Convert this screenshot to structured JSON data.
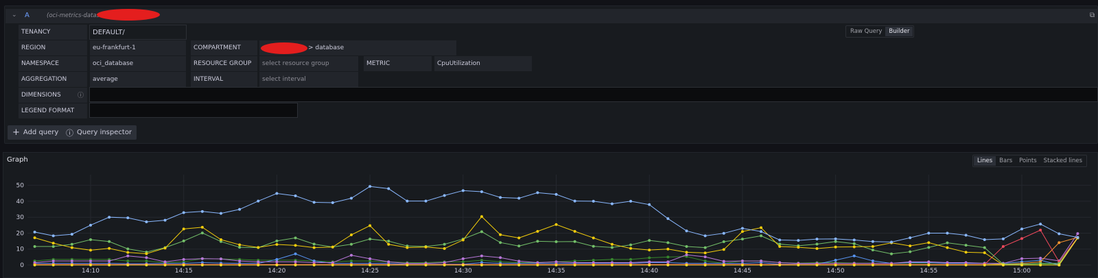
{
  "query": {
    "letter": "A",
    "datasource": "(oci-metrics-datasource",
    "mode_tabs": [
      {
        "label": "Raw Query",
        "active": false
      },
      {
        "label": "Builder",
        "active": true
      }
    ],
    "fields": {
      "tenancy": {
        "label": "TENANCY",
        "value": "DEFAULT/"
      },
      "region": {
        "label": "REGION",
        "value": "eu-frankfurt-1"
      },
      "compartment": {
        "label": "COMPARTMENT",
        "value": "> database"
      },
      "namespace": {
        "label": "NAMESPACE",
        "value": "oci_database"
      },
      "resource_group": {
        "label": "RESOURCE GROUP",
        "placeholder": "select resource group"
      },
      "metric": {
        "label": "METRIC",
        "value": "CpuUtilization"
      },
      "aggregation": {
        "label": "AGGREGATION",
        "value": "average"
      },
      "interval": {
        "label": "INTERVAL",
        "placeholder": "select interval"
      },
      "dimensions": {
        "label": "DIMENSIONS",
        "value": ""
      },
      "legend_format": {
        "label": "LEGEND FORMAT",
        "value": ""
      }
    },
    "add_query": "Add query",
    "query_inspector": "Query inspector"
  },
  "graph": {
    "title": "Graph",
    "view_tabs": [
      {
        "label": "Lines",
        "active": true
      },
      {
        "label": "Bars",
        "active": false
      },
      {
        "label": "Points",
        "active": false
      },
      {
        "label": "Stacked lines",
        "active": false
      }
    ]
  },
  "chart_data": {
    "type": "line",
    "ylim": [
      0,
      55
    ],
    "yticks": [
      "0",
      "10",
      "20",
      "30",
      "40",
      "50"
    ],
    "xticks": [
      "14:10",
      "14:15",
      "14:20",
      "14:25",
      "14:30",
      "14:35",
      "14:40",
      "14:45",
      "14:50",
      "14:55",
      "15:00"
    ],
    "x_start": "14:07",
    "x_end": "15:03",
    "x_step_minutes": 1,
    "grid": true,
    "series": [
      {
        "color": "#37872D",
        "values": [
          2.5,
          3.5,
          3.5,
          3.5,
          3.5,
          2.5,
          2.5,
          1.5,
          2,
          4,
          3.8,
          3.5,
          3,
          3,
          3,
          2.5,
          2,
          2.5,
          2.5,
          2,
          1.5,
          1.5,
          2,
          2,
          3,
          2,
          1.5,
          1.5,
          2,
          2.5,
          3,
          3.5,
          3.5,
          4.5,
          5,
          5.3,
          2.5,
          1,
          2.5,
          2.5,
          1.5,
          1.2,
          1.5,
          1.5,
          1.2,
          1.2,
          1,
          1.2,
          1.2,
          1.2,
          1.2,
          1.2,
          0.5,
          0.5,
          0.5,
          0.5,
          17
        ]
      },
      {
        "color": "#5794F2",
        "values": [
          1,
          1,
          1,
          1,
          1,
          0.8,
          0.8,
          1,
          1,
          1.5,
          1.2,
          1,
          1,
          3.5,
          7,
          2.5,
          1,
          1,
          1,
          1,
          0.5,
          0.5,
          0.5,
          0.5,
          1.5,
          1,
          1,
          1,
          1,
          1,
          1,
          1,
          1,
          1.5,
          1.5,
          1,
          1,
          1,
          1,
          1.5,
          0.5,
          0.5,
          0.5,
          3,
          5.7,
          2.6,
          1,
          1.5,
          1.5,
          1,
          1,
          1,
          1,
          2,
          3,
          0,
          17
        ]
      },
      {
        "color": "#B877D9",
        "values": [
          1.5,
          2.5,
          2.5,
          2.5,
          2.5,
          5.7,
          4.6,
          2,
          3.5,
          4,
          3.8,
          2.5,
          2,
          2,
          2,
          1.5,
          1.5,
          6.1,
          3.9,
          2,
          1,
          1,
          1.5,
          3.9,
          5.7,
          4.6,
          2.4,
          1.5,
          2,
          1.5,
          1.5,
          1.5,
          1.5,
          2,
          2,
          6.4,
          5.1,
          2.3,
          2.5,
          2.5,
          1.5,
          1,
          1,
          1,
          1,
          1,
          1,
          2,
          2,
          1.5,
          1.5,
          1,
          1,
          4,
          4.3,
          2.6,
          19.7
        ]
      },
      {
        "color": "#FF9830",
        "values": [
          0.2,
          0.2,
          0.2,
          0.2,
          0.2,
          0.2,
          0.2,
          0.2,
          0.2,
          0.2,
          0.2,
          0.2,
          0.2,
          0.2,
          0.2,
          0.2,
          0.2,
          0.2,
          0.2,
          0.2,
          0.2,
          0.2,
          0.2,
          0.2,
          0.2,
          0.2,
          0.2,
          0.2,
          0.2,
          0.2,
          0.2,
          0.2,
          0.2,
          0.2,
          0.2,
          0.2,
          0.2,
          0.2,
          0.2,
          0.2,
          0.2,
          0.2,
          0.2,
          0.2,
          0.2,
          0.2,
          0.2,
          0.2,
          0.2,
          0.2,
          0.2,
          0.2,
          0.5,
          1,
          2,
          14,
          17.3
        ]
      },
      {
        "color": "#F2495C",
        "values": [
          0.3,
          0.3,
          0.3,
          0.3,
          0.3,
          0.3,
          0.3,
          0.3,
          0.3,
          0.3,
          0.3,
          0.3,
          0.3,
          0.3,
          0.3,
          0.3,
          0.3,
          0.3,
          0.3,
          0.3,
          0.3,
          0.3,
          0.3,
          0.3,
          0.3,
          0.3,
          0.3,
          0.3,
          0.3,
          0.3,
          0.3,
          0.3,
          0.3,
          0.3,
          0.3,
          0.3,
          0.3,
          0.3,
          0.3,
          0.3,
          0.3,
          0.3,
          0.3,
          0.3,
          0.3,
          0.3,
          0.3,
          0.3,
          0.3,
          0.3,
          0.3,
          0.3,
          11.6,
          16.6,
          21.9,
          2,
          17.3
        ]
      },
      {
        "color": "#73BF69",
        "values": [
          11.6,
          11.6,
          13,
          15.9,
          14.7,
          10.1,
          8.1,
          10.9,
          15.1,
          20.1,
          14.7,
          11.1,
          10.9,
          15.1,
          17,
          13.1,
          11.3,
          13,
          16.3,
          15,
          11.9,
          11.6,
          13,
          16.3,
          20.9,
          14.1,
          11.9,
          14.9,
          14.6,
          14.7,
          11.7,
          11,
          12.6,
          15.4,
          14,
          11.6,
          10.9,
          14.6,
          16.3,
          18.3,
          13.1,
          12.1,
          13.1,
          14.7,
          13.4,
          9.4,
          7,
          8.3,
          11,
          13.9,
          12.4,
          10.9,
          0.5,
          0.5,
          1,
          1,
          17
        ]
      },
      {
        "color": "#F2CC0C",
        "values": [
          17.1,
          13.7,
          10.9,
          9.3,
          10.4,
          7.9,
          7.1,
          10.6,
          22.6,
          23.7,
          15.9,
          12.7,
          11,
          12.9,
          12.3,
          10.9,
          11.3,
          18.9,
          24.7,
          13,
          10.9,
          11.3,
          10.3,
          15.7,
          30.4,
          19,
          17,
          21.1,
          25.4,
          21.1,
          17,
          13,
          10.4,
          9.4,
          10,
          8,
          7.6,
          9.7,
          21,
          23.4,
          11.6,
          11.1,
          10.3,
          11.3,
          11.4,
          11.6,
          13.9,
          12,
          14,
          10.9,
          8,
          7.7,
          0,
          0,
          0,
          0,
          17.1
        ]
      },
      {
        "color": "#FADE2A",
        "values": [
          0,
          0,
          0,
          0,
          0,
          0,
          0,
          0,
          0,
          0,
          0,
          0,
          0,
          0,
          0,
          0,
          0,
          0,
          0,
          0,
          0,
          0,
          0,
          0,
          0,
          0,
          0,
          0,
          0,
          0,
          0,
          0,
          0,
          0,
          0,
          0,
          0,
          0,
          0,
          0,
          0,
          0,
          0,
          0,
          0,
          0,
          0,
          0,
          0,
          0,
          0,
          0,
          0,
          0,
          0,
          0,
          17
        ]
      },
      {
        "color": "#8AB8FF",
        "values": [
          20.7,
          18.3,
          19.3,
          25,
          30,
          29.6,
          27.1,
          28.1,
          32.9,
          33.6,
          32.4,
          34.9,
          40.1,
          44.9,
          43.4,
          39.3,
          39.1,
          41.9,
          49.3,
          47.9,
          40.1,
          40.1,
          43.6,
          46.7,
          46,
          42.4,
          41.9,
          45.4,
          44.3,
          40.1,
          40,
          38.4,
          40,
          37.9,
          29.1,
          21.4,
          18.3,
          19.9,
          23,
          21,
          15.7,
          15.4,
          16.3,
          16.4,
          15.7,
          14.7,
          14.4,
          17.1,
          20,
          20,
          18.7,
          15.9,
          16.4,
          22.6,
          25.7,
          19.6,
          17.3
        ]
      }
    ]
  }
}
